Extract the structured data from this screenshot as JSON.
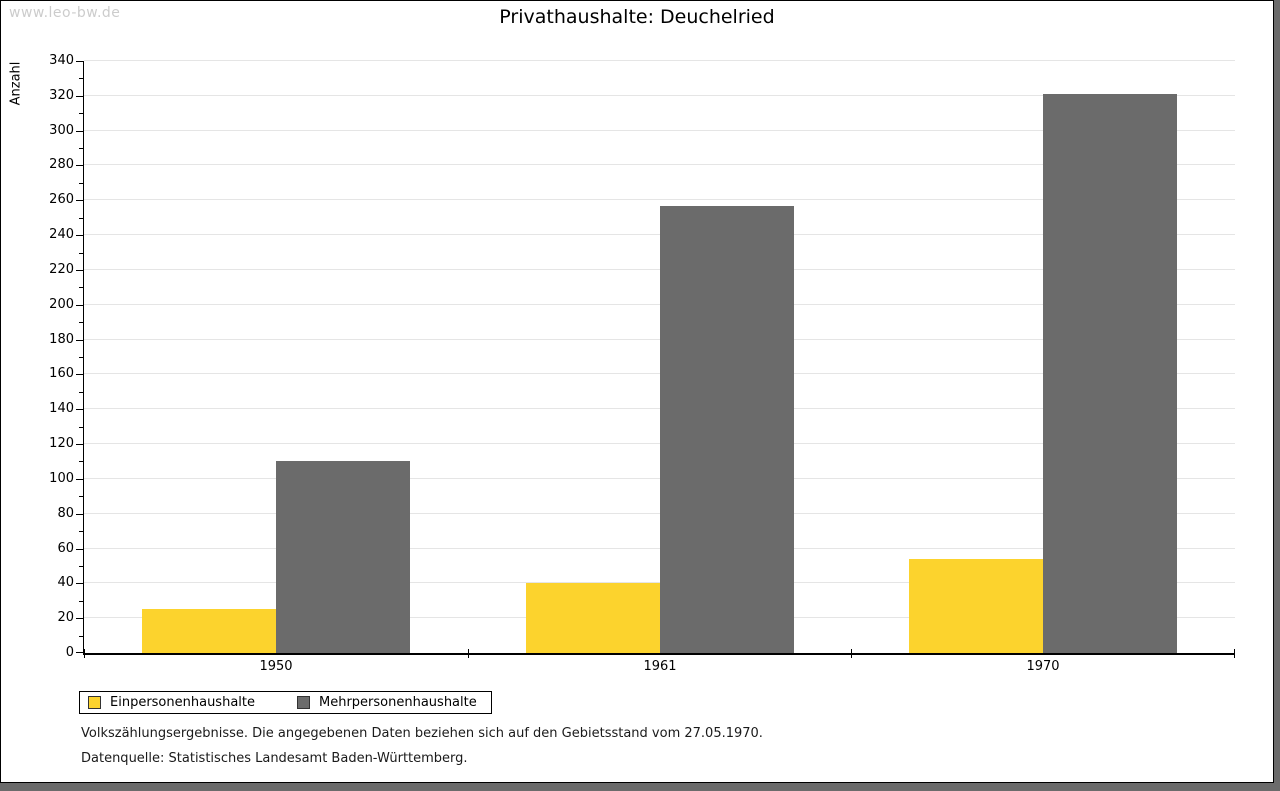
{
  "watermark": "www.leo-bw.de",
  "title": "Privathaushalte: Deuchelried",
  "chart_data": {
    "type": "bar",
    "title": "Privathaushalte: Deuchelried",
    "categories": [
      "1950",
      "1961",
      "1970"
    ],
    "series": [
      {
        "name": "Einpersonenhaushalte",
        "color": "#FCD32D",
        "values": [
          25,
          40,
          54
        ]
      },
      {
        "name": "Mehrpersonenhaushalte",
        "color": "#6B6B6B",
        "values": [
          110,
          257,
          321
        ]
      }
    ],
    "xlabel": "",
    "ylabel": "Anzahl",
    "ylim": [
      0,
      340
    ],
    "yticks": [
      0,
      20,
      40,
      60,
      80,
      100,
      120,
      140,
      160,
      180,
      200,
      220,
      240,
      260,
      280,
      300,
      320,
      340
    ],
    "minor_tick_step": 10,
    "grid": true,
    "legend_position": "bottom-left"
  },
  "colors": {
    "series1": "#FCD32D",
    "series2": "#6B6B6B",
    "gridline": "#E5E5E5",
    "axis": "#000000",
    "watermark": "#CCCCCC",
    "frame_shadow": "#6B6B6B"
  },
  "footnotes": [
    "Volkszählungsergebnisse. Die angegebenen Daten beziehen sich auf den Gebietsstand vom 27.05.1970.",
    "Datenquelle: Statistisches Landesamt Baden-Württemberg."
  ]
}
